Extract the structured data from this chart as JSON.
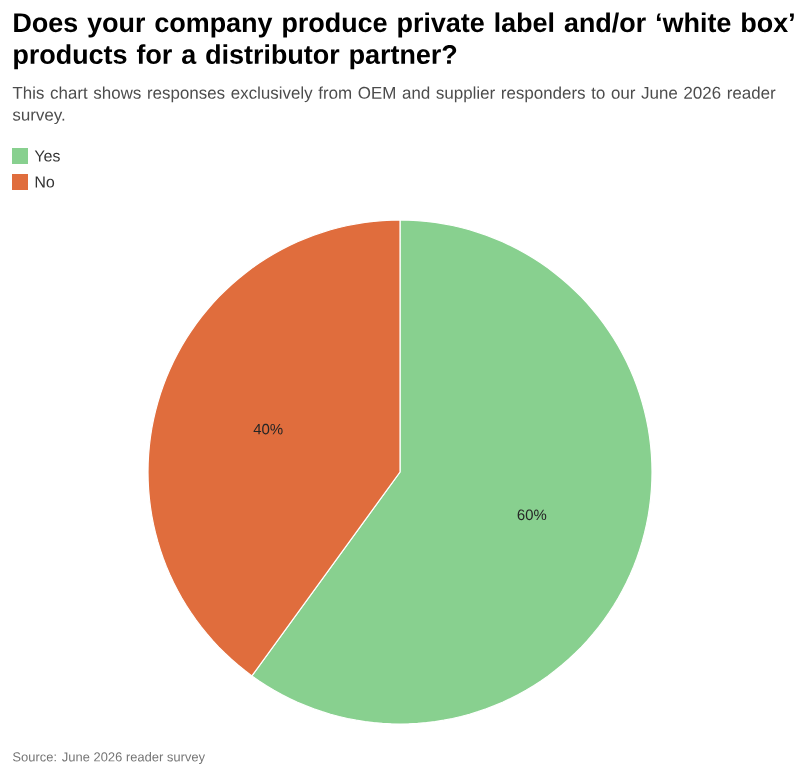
{
  "chart_data": {
    "type": "pie",
    "title": "Does your company produce private label and/or ‘white box’ products for a distributor partner?",
    "subtitle": "This chart shows responses exclusively from OEM and supplier responders to our June 2026 reader survey.",
    "categories": [
      "Yes",
      "No"
    ],
    "values": [
      60,
      40
    ],
    "colors": [
      "#88d08f",
      "#e06d3d"
    ],
    "value_labels": [
      "60%",
      "40%"
    ],
    "legend": "top left",
    "annotations": [
      "Source: June 2026 reader survey"
    ]
  }
}
